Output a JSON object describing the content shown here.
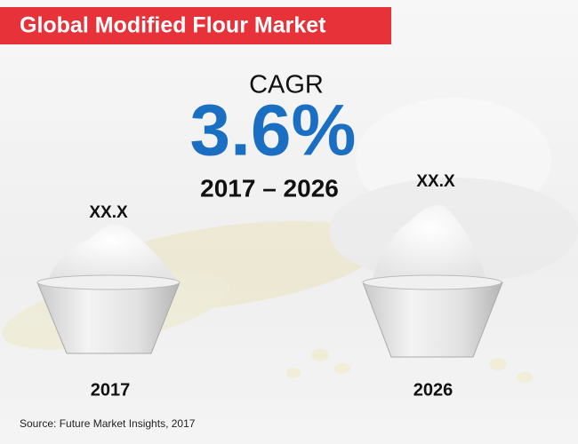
{
  "header": {
    "title": "Global Modified Flour Market"
  },
  "cagr": {
    "label": "CAGR",
    "value": "3.6%",
    "period": "2017 – 2026"
  },
  "bowls": [
    {
      "value_label": "XX.X",
      "year": "2017"
    },
    {
      "value_label": "XX.X",
      "year": "2026"
    }
  ],
  "source": "Source: Future Market Insights, 2017"
}
